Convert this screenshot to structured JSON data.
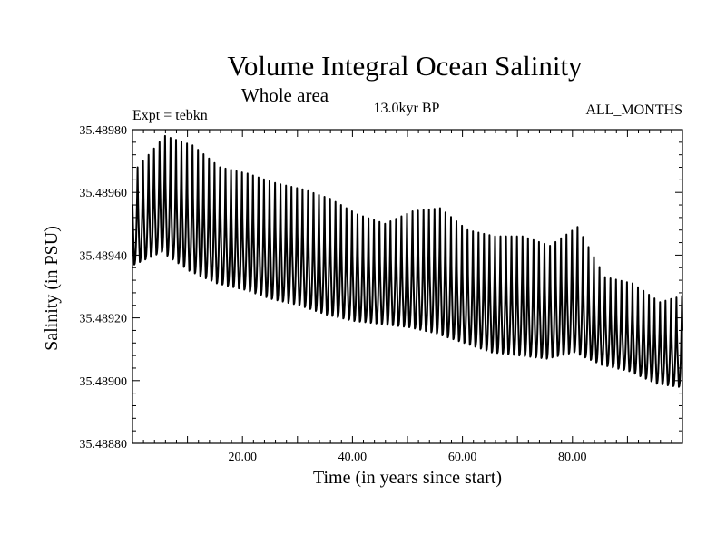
{
  "chart_data": {
    "type": "line",
    "title": "Volume Integral Ocean Salinity",
    "subtitle": "Whole area",
    "period_label": "13.0kyr BP",
    "experiment_label": "Expt = tebkn",
    "months_label": "ALL_MONTHS",
    "xlabel": "Time (in years since start)",
    "ylabel": "Salinity (in PSU)",
    "xlim": [
      0,
      100
    ],
    "ylim": [
      35.4888,
      35.4898
    ],
    "x_ticks": [
      20,
      40,
      60,
      80
    ],
    "x_tick_labels": [
      "20.00",
      "40.00",
      "60.00",
      "80.00"
    ],
    "y_ticks": [
      35.4888,
      35.489,
      35.4892,
      35.4894,
      35.4896,
      35.4898
    ],
    "y_tick_labels": [
      "35.48880",
      "35.48900",
      "35.48920",
      "35.48940",
      "35.48960",
      "35.48980"
    ],
    "series": [
      {
        "name": "Salinity",
        "sampling": "monthly",
        "annual_peak_month": 11,
        "annual_trough_month": 5,
        "years": [
          0.5,
          5.5,
          10.5,
          15.5,
          20.5,
          25.5,
          30.5,
          35.5,
          40.5,
          45.5,
          50.5,
          55.5,
          60.5,
          65.5,
          70.5,
          75.5,
          80.5,
          85.5,
          90.5,
          95.5,
          99.5
        ],
        "annual_max": [
          35.48968,
          35.48978,
          35.48975,
          35.48968,
          35.48966,
          35.48963,
          35.48961,
          35.48958,
          35.48953,
          35.4895,
          35.48954,
          35.48955,
          35.48948,
          35.48946,
          35.48946,
          35.48943,
          35.48949,
          35.48933,
          35.48931,
          35.48925,
          35.48927
        ],
        "annual_min": [
          35.48937,
          35.48941,
          35.48935,
          35.48931,
          35.48929,
          35.48926,
          35.48924,
          35.48921,
          35.48919,
          35.48918,
          35.48917,
          35.48915,
          35.48912,
          35.48909,
          35.48908,
          35.48907,
          35.48909,
          35.48905,
          35.48903,
          35.48899,
          35.48898
        ]
      }
    ]
  }
}
